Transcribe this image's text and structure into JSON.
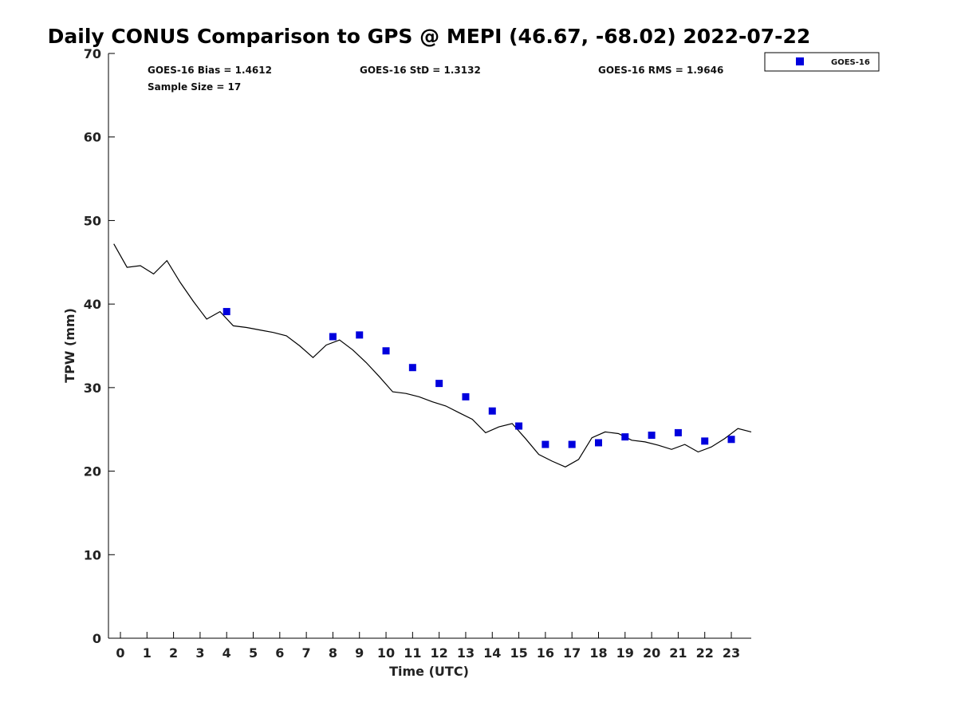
{
  "chart_data": {
    "type": "line",
    "title": "Daily CONUS Comparison to GPS @ MEPI (46.67, -68.02) 2022-07-22",
    "xlabel": "Time (UTC)",
    "ylabel": "TPW (mm)",
    "xlim": [
      -0.45,
      23.75
    ],
    "ylim": [
      0,
      70
    ],
    "x_ticks": [
      0,
      1,
      2,
      3,
      4,
      5,
      6,
      7,
      8,
      9,
      10,
      11,
      12,
      13,
      14,
      15,
      16,
      17,
      18,
      19,
      20,
      21,
      22,
      23
    ],
    "y_ticks": [
      0,
      10,
      20,
      30,
      40,
      50,
      60,
      70
    ],
    "grid": false,
    "legend_position": "outside-top-right",
    "stats": {
      "bias": "GOES-16 Bias = 1.4612",
      "std": "GOES-16 StD = 1.3132",
      "rms": "GOES-16 RMS = 1.9646",
      "sample": "Sample Size = 17"
    },
    "series": [
      {
        "type": "line",
        "color": "#000000",
        "x": [
          -0.25,
          0.25,
          0.75,
          1.25,
          1.75,
          2.25,
          2.75,
          3.25,
          3.75,
          4.25,
          4.75,
          5.25,
          5.75,
          6.25,
          6.75,
          7.25,
          7.75,
          8.25,
          8.75,
          9.25,
          9.75,
          10.25,
          10.75,
          11.25,
          11.75,
          12.25,
          12.75,
          13.25,
          13.75,
          14.25,
          14.75,
          15.25,
          15.75,
          16.25,
          16.75,
          17.25,
          17.75,
          18.25,
          18.75,
          19.25,
          19.75,
          20.25,
          20.75,
          21.25,
          21.75,
          22.25,
          22.75,
          23.25,
          23.75
        ],
        "values": [
          47.2,
          44.4,
          44.6,
          43.6,
          45.2,
          42.6,
          40.3,
          38.2,
          39.1,
          37.4,
          37.2,
          36.9,
          36.6,
          36.2,
          35.0,
          33.6,
          35.1,
          35.7,
          34.5,
          33.0,
          31.3,
          29.5,
          29.3,
          28.9,
          28.3,
          27.8,
          27.0,
          26.2,
          24.6,
          25.3,
          25.7,
          23.9,
          22.0,
          21.2,
          20.5,
          21.4,
          24.0,
          24.7,
          24.5,
          23.7,
          23.5,
          23.1,
          22.6,
          23.2,
          22.3,
          22.9,
          23.9,
          25.1,
          24.7
        ]
      },
      {
        "name": "GOES-16",
        "type": "scatter",
        "color": "#0000dd",
        "x": [
          4,
          8,
          9,
          10,
          11,
          12,
          13,
          14,
          15,
          16,
          17,
          18,
          19,
          20,
          21,
          22,
          23
        ],
        "values": [
          39.1,
          36.1,
          36.3,
          34.4,
          32.4,
          30.5,
          28.9,
          27.2,
          25.4,
          23.2,
          23.2,
          23.4,
          24.1,
          24.3,
          24.6,
          23.6,
          23.8
        ]
      }
    ]
  }
}
